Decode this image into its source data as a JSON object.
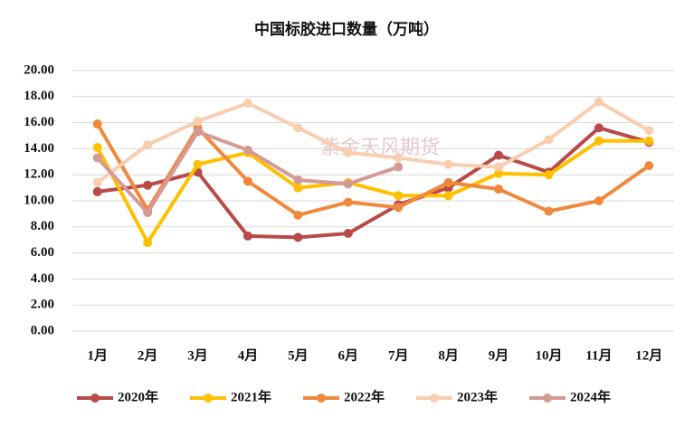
{
  "chart_data": {
    "type": "line",
    "title": "中国标胶进口数量（万吨）",
    "watermark": "紫金天风期货",
    "categories": [
      "1月",
      "2月",
      "3月",
      "4月",
      "5月",
      "6月",
      "7月",
      "8月",
      "9月",
      "10月",
      "11月",
      "12月"
    ],
    "series": [
      {
        "name": "2020年",
        "color": "#b94a48",
        "values": [
          10.7,
          11.2,
          12.2,
          7.3,
          7.2,
          7.5,
          9.7,
          11.0,
          13.5,
          12.2,
          15.6,
          14.5
        ]
      },
      {
        "name": "2021年",
        "color": "#ffc000",
        "values": [
          14.1,
          6.8,
          12.8,
          13.7,
          11.0,
          11.4,
          10.4,
          10.4,
          12.1,
          12.0,
          14.6,
          14.6
        ]
      },
      {
        "name": "2022年",
        "color": "#f0893c",
        "values": [
          15.9,
          9.3,
          15.6,
          11.5,
          8.9,
          9.9,
          9.5,
          11.4,
          10.9,
          9.2,
          10.0,
          12.7
        ]
      },
      {
        "name": "2023年",
        "color": "#f9cdb0",
        "values": [
          11.4,
          14.3,
          16.1,
          17.5,
          15.6,
          13.7,
          13.3,
          12.8,
          12.6,
          14.7,
          17.6,
          15.4
        ]
      },
      {
        "name": "2024年",
        "color": "#d39a98",
        "values": [
          13.3,
          9.1,
          15.3,
          13.9,
          11.6,
          11.3,
          12.6,
          null,
          null,
          null,
          null,
          null
        ]
      }
    ],
    "ylim": [
      0,
      20
    ],
    "yticks": [
      {
        "value": 0,
        "label": "0.00"
      },
      {
        "value": 2,
        "label": "2.00"
      },
      {
        "value": 4,
        "label": "4.00"
      },
      {
        "value": 6,
        "label": "6.00"
      },
      {
        "value": 8,
        "label": "8.00"
      },
      {
        "value": 10,
        "label": "10.00"
      },
      {
        "value": 12,
        "label": "12.00"
      },
      {
        "value": 14,
        "label": "14.00"
      },
      {
        "value": 16,
        "label": "16.00"
      },
      {
        "value": 18,
        "label": "18.00"
      },
      {
        "value": 20,
        "label": "20.00"
      }
    ],
    "grid": true,
    "legend": "bottom"
  }
}
